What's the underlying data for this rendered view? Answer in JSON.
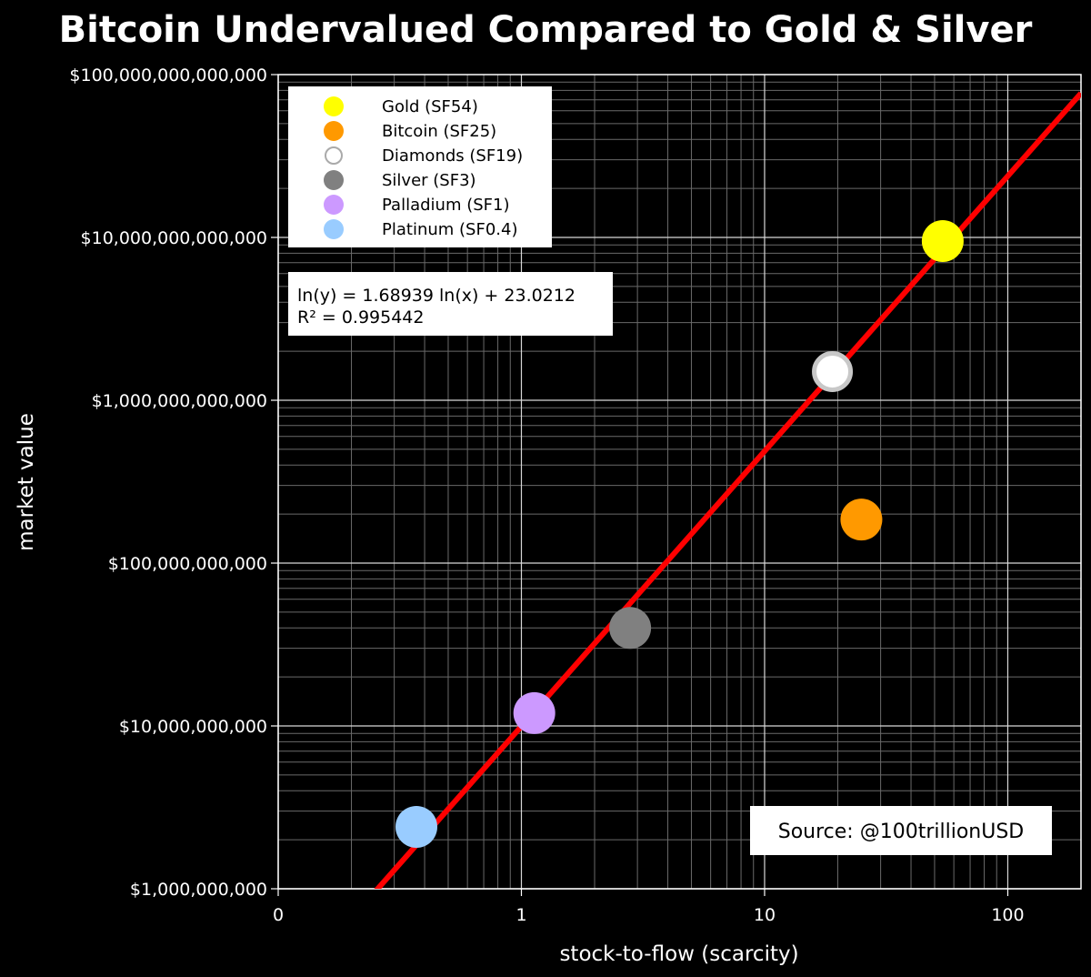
{
  "chart_data": {
    "type": "scatter",
    "title": "Bitcoin Undervalued Compared to Gold & Silver",
    "xlabel": "stock-to-flow (scarcity)",
    "ylabel": "market value",
    "x_scale": "log",
    "y_scale": "log",
    "xlim": [
      0.1,
      200
    ],
    "ylim": [
      1000000000,
      100000000000000
    ],
    "x_ticks": [
      {
        "value": 0.1,
        "label": "0"
      },
      {
        "value": 1,
        "label": "1"
      },
      {
        "value": 10,
        "label": "10"
      },
      {
        "value": 100,
        "label": "100"
      }
    ],
    "y_ticks": [
      {
        "value": 1000000000,
        "label": "$1,000,000,000"
      },
      {
        "value": 10000000000,
        "label": "$10,000,000,000"
      },
      {
        "value": 100000000000,
        "label": "$100,000,000,000"
      },
      {
        "value": 1000000000000,
        "label": "$1,000,000,000,000"
      },
      {
        "value": 10000000000000,
        "label": "$10,000,000,000,000"
      },
      {
        "value": 100000000000000,
        "label": "$100,000,000,000,000"
      }
    ],
    "grid": true,
    "legend_position": "top-left",
    "series": [
      {
        "name": "Gold (SF54)",
        "x": 54,
        "y": 9500000000000,
        "color": "#ffff00",
        "style": "filled"
      },
      {
        "name": "Bitcoin (SF25)",
        "x": 25,
        "y": 185000000000,
        "color": "#ff9900",
        "style": "filled"
      },
      {
        "name": "Diamonds (SF19)",
        "x": 19,
        "y": 1500000000000,
        "color": "#ffffff",
        "style": "ring"
      },
      {
        "name": "Silver (SF3)",
        "x": 2.8,
        "y": 40000000000,
        "color": "#808080",
        "style": "filled"
      },
      {
        "name": "Palladium (SF1)",
        "x": 1.13,
        "y": 12000000000,
        "color": "#cc99ff",
        "style": "filled"
      },
      {
        "name": "Platinum (SF0.4)",
        "x": 0.37,
        "y": 2400000000,
        "color": "#99ccff",
        "style": "filled"
      }
    ],
    "regression": {
      "equation": "ln(y) = 1.68939 ln(x) + 23.0212",
      "r_squared": "R² = 0.995442",
      "slope": 1.68939,
      "intercept": 23.0212,
      "color": "#ff0000"
    },
    "annotation": "Source: @100trillionUSD"
  }
}
